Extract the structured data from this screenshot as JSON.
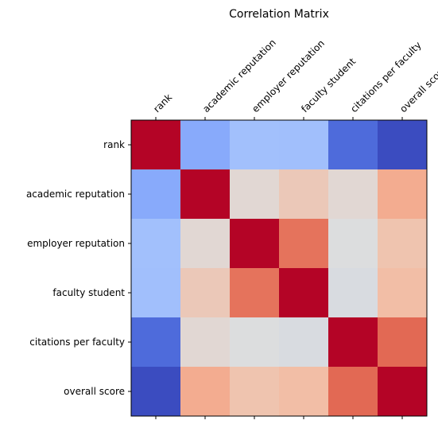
{
  "chart_data": {
    "type": "heatmap",
    "title": "Correlation Matrix",
    "labels": [
      "rank",
      "academic reputation",
      "employer reputation",
      "faculty student",
      "citations per faculty",
      "overall score"
    ],
    "values": [
      [
        1.0,
        -0.4,
        -0.25,
        -0.26,
        -0.75,
        -0.93
      ],
      [
        -0.4,
        1.0,
        0.08,
        0.2,
        0.08,
        0.4
      ],
      [
        -0.25,
        0.08,
        1.0,
        0.68,
        0.03,
        0.24
      ],
      [
        -0.26,
        0.2,
        0.68,
        1.0,
        0.01,
        0.28
      ],
      [
        -0.75,
        0.08,
        0.03,
        0.01,
        1.0,
        0.72
      ],
      [
        -0.93,
        0.4,
        0.24,
        0.28,
        0.72,
        1.0
      ]
    ],
    "colormap": "coolwarm",
    "vmin": -0.93,
    "vmax": 1.0,
    "x_tick_position": "top",
    "x_tick_rotation": 45,
    "colors": {
      "high": "#b40426",
      "low": "#3b4cc0",
      "mid": "#dddddd"
    }
  }
}
